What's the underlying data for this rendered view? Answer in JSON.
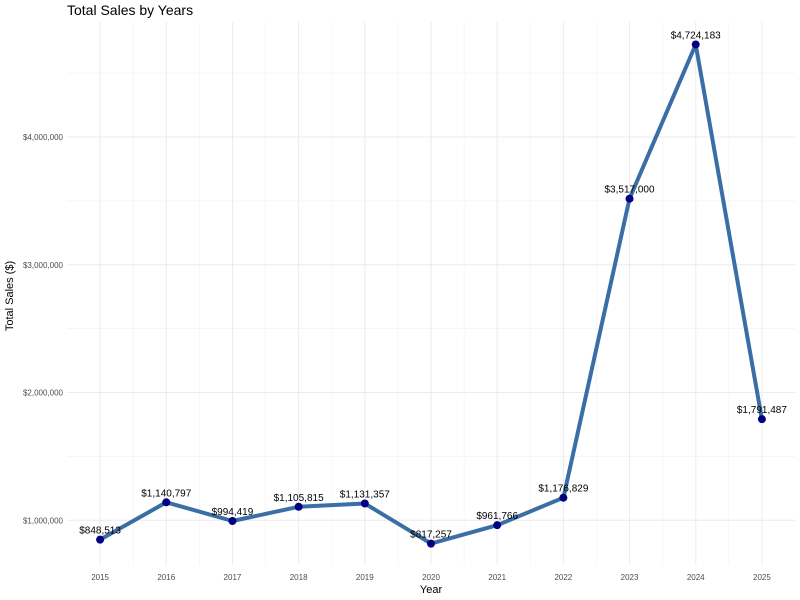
{
  "chart_data": {
    "type": "line",
    "title": "Total Sales by Years",
    "xlabel": "Year",
    "ylabel": "Total Sales ($)",
    "x": [
      2015,
      2016,
      2017,
      2018,
      2019,
      2020,
      2021,
      2022,
      2023,
      2024,
      2025
    ],
    "y": [
      848513,
      1140797,
      994419,
      1105815,
      1131357,
      817257,
      961766,
      1176829,
      3517000,
      4724183,
      1791487
    ],
    "data_labels": [
      "$848,513",
      "$1,140,797",
      "$994,419",
      "$1,105,815",
      "$1,131,357",
      "$817,257",
      "$961,766",
      "$1,176,829",
      "$3,517,000",
      "$4,724,183",
      "$1,791,487"
    ],
    "x_tick_labels": [
      "2015",
      "2016",
      "2017",
      "2018",
      "2019",
      "2020",
      "2021",
      "2022",
      "2023",
      "2024",
      "2025"
    ],
    "y_ticks": [
      1000000,
      2000000,
      3000000,
      4000000
    ],
    "y_tick_labels": [
      "$1,000,000",
      "$2,000,000",
      "$3,000,000",
      "$4,000,000"
    ],
    "ylim": [
      650000,
      4900000
    ],
    "grid": true,
    "legend": "none",
    "colors": {
      "line": "#3a6ea5",
      "point": "#000080",
      "grid": "#ebebeb"
    }
  }
}
